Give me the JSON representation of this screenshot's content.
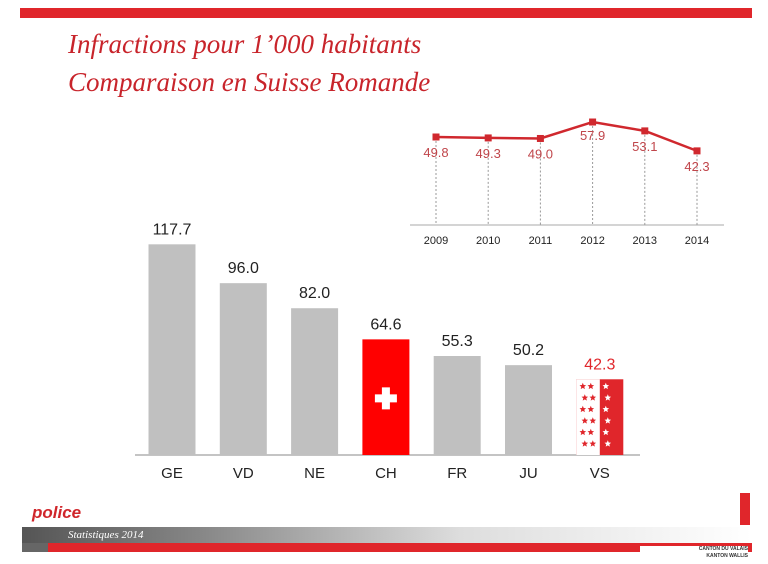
{
  "title": {
    "line1": "Infractions pour 1’000 habitants",
    "line2": "Comparaison en Suisse Romande"
  },
  "chart_data": [
    {
      "type": "bar",
      "title": "",
      "categories": [
        "GE",
        "VD",
        "NE",
        "CH",
        "FR",
        "JU",
        "VS"
      ],
      "values": [
        117.7,
        96.0,
        82.0,
        64.6,
        55.3,
        50.2,
        42.3
      ],
      "labels": [
        "117.7",
        "96.0",
        "82.0",
        "64.6",
        "55.3",
        "50.2",
        "42.3"
      ],
      "colors": [
        "#c0c0c0",
        "#c0c0c0",
        "#c0c0c0",
        "#ff0000",
        "#c0c0c0",
        "#c0c0c0",
        "#e0262b"
      ],
      "ylim": [
        0,
        120
      ]
    },
    {
      "type": "line",
      "title": "",
      "x": [
        "2009",
        "2010",
        "2011",
        "2012",
        "2013",
        "2014"
      ],
      "values": [
        49.8,
        49.3,
        49.0,
        57.9,
        53.1,
        42.3
      ],
      "labels": [
        "49.8",
        "49.3",
        "49.0",
        "57.9",
        "53.1",
        "42.3"
      ],
      "color": "#d0282e"
    }
  ],
  "footer": {
    "subtitle": "Statistiques 2014",
    "logo": "police",
    "canton_line1": "CANTON DU VALAIS",
    "canton_line2": "KANTON WALLIS"
  }
}
